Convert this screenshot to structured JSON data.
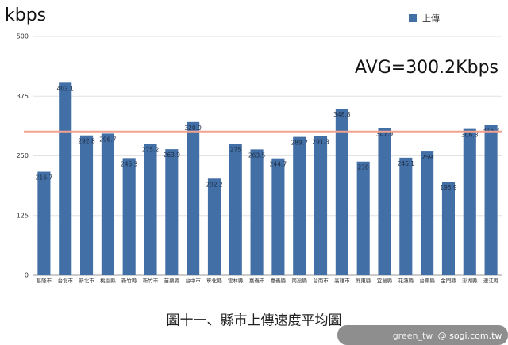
{
  "chart_data": {
    "type": "bar",
    "title": "kbps",
    "categories": [
      "基隆市",
      "台北市",
      "新北市",
      "桃園縣",
      "新竹縣",
      "新竹市",
      "苗栗縣",
      "台中市",
      "彰化縣",
      "雲林縣",
      "嘉義市",
      "嘉義縣",
      "南投縣",
      "台南市",
      "高雄市",
      "屏東縣",
      "宜蘭縣",
      "花蓮縣",
      "台東縣",
      "金門縣",
      "澎湖縣",
      "連江縣"
    ],
    "series": [
      {
        "name": "上傳",
        "color": "#426fa6",
        "values": [
          216.7,
          403.1,
          292.8,
          296.7,
          245.3,
          275.2,
          263.9,
          320.9,
          202.2,
          275.0,
          263.5,
          244.7,
          289.7,
          291.3,
          348.8,
          238.0,
          307.9,
          246.1,
          259.0,
          195.9,
          306.3,
          315.3
        ]
      }
    ],
    "ylim": [
      0,
      500
    ],
    "yticks": [
      0,
      125,
      250,
      375,
      500
    ],
    "grid": true,
    "legend": "top-right",
    "average": {
      "value": 300.2,
      "label": "AVG=300.2Kbps",
      "color": "#f2a28f"
    },
    "caption": "圖十一、縣市上傳速度平均圖"
  },
  "watermark": [
    "green_tw",
    "@ sogi.com.tw"
  ]
}
